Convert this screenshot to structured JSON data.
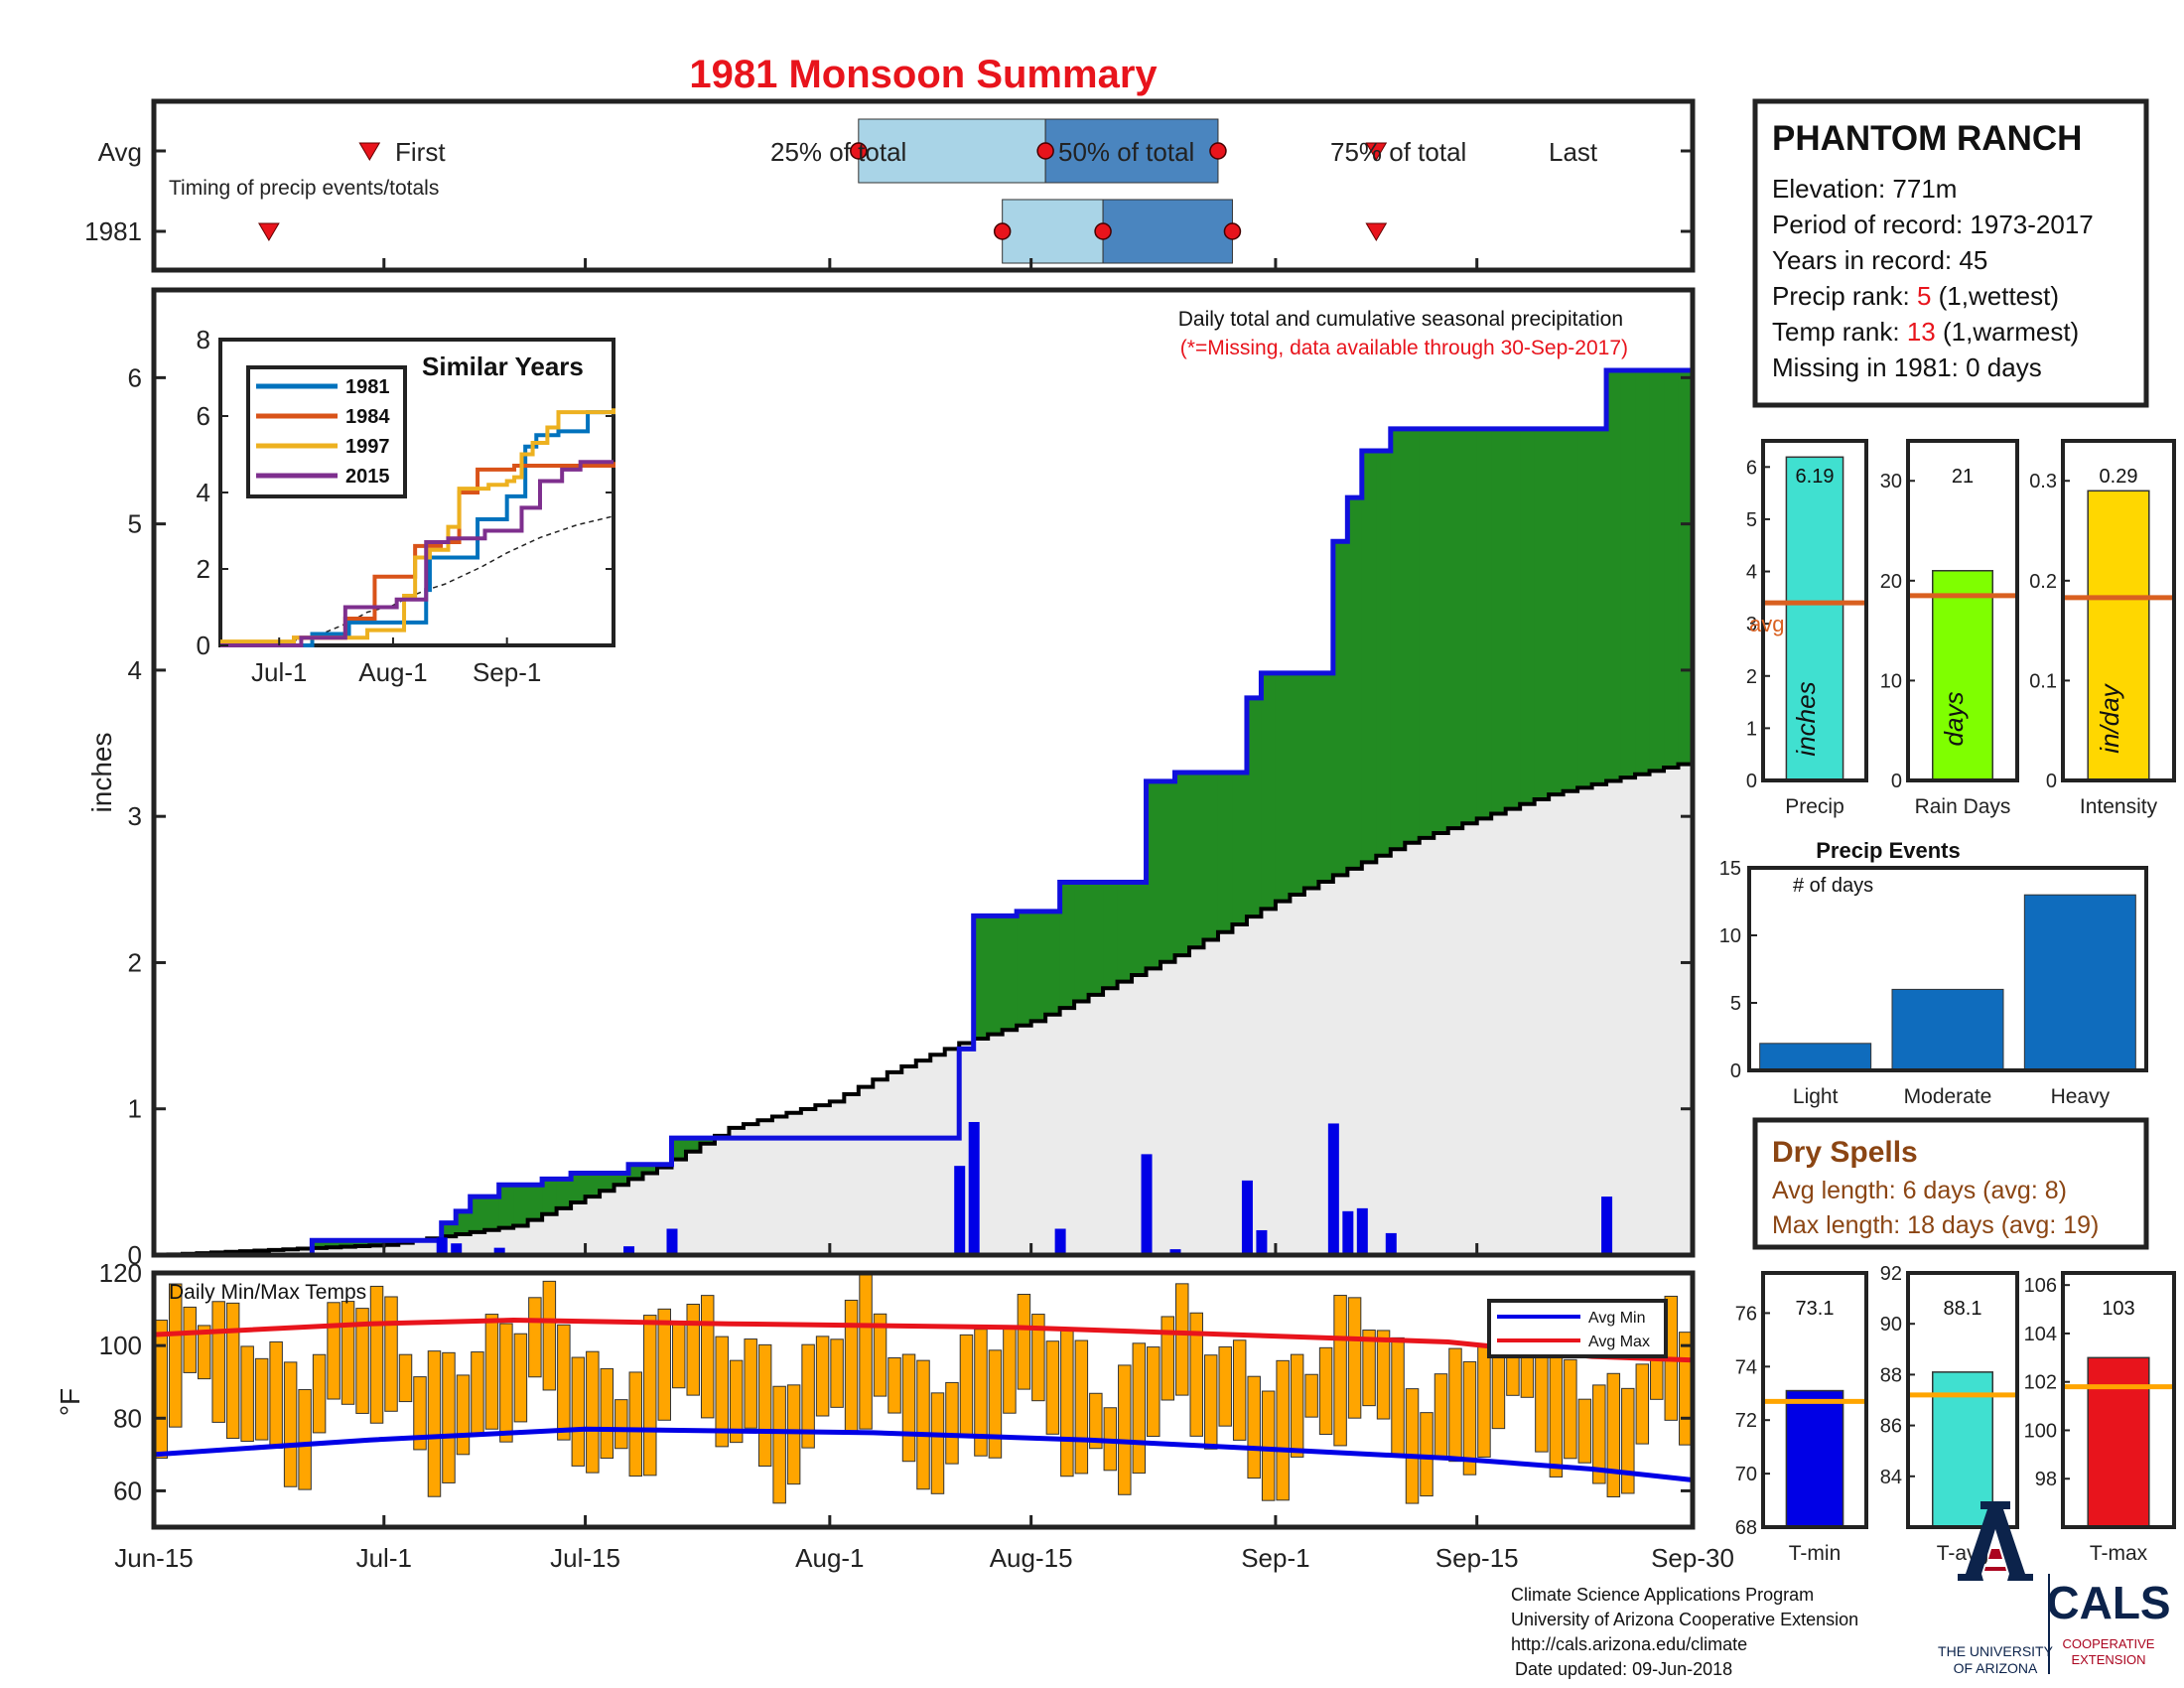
{
  "title": "1981 Monsoon Summary",
  "colors": {
    "title": "#e8141c",
    "red": "#e8141c",
    "light_blue": "#a9d4e7",
    "mid_blue": "#4a85bf",
    "bar_blue": "#0000e6",
    "outline_blue": "#1010dd",
    "green": "#228b22",
    "brown": "#b8860b",
    "gray_fill": "#ebebeb",
    "orange": "#ffa500",
    "turquoise": "#40e0d0",
    "lime": "#7fff00",
    "gold": "#ffd700",
    "event_blue": "#0f6cbd",
    "avg_line": "#d96020",
    "temp_avg_line": "#ffa500",
    "dry_brown": "#8b4513",
    "ua_navy": "#0c234b",
    "ua_red": "#ab0520"
  },
  "timing": {
    "row_avg": "Avg",
    "row_year": "1981",
    "subtitle": "Timing of precip events/totals",
    "first_label": "First",
    "last_label": "Last",
    "q25_label": "25% of total",
    "q50_label": "50% of total",
    "q75_label": "75% of total",
    "avg": {
      "first": 15,
      "q25": 49,
      "q50": 62,
      "q75": 74,
      "last": 85
    },
    "year": {
      "first": 8,
      "q25": 59,
      "q50": 66,
      "q75": 75,
      "last": 85
    }
  },
  "station": {
    "name": "PHANTOM RANCH",
    "elevation": "Elevation: 771m",
    "period": "Period of record: 1973-2017",
    "years": "Years in record: 45",
    "precip_rank_label": "Precip rank: ",
    "precip_rank_value": "5",
    "precip_rank_note": " (1,wettest)",
    "temp_rank_label": "Temp rank: ",
    "temp_rank_value": "13",
    "temp_rank_note": " (1,warmest)",
    "missing": "Missing in 1981: 0 days"
  },
  "precip_chart": {
    "annotation": "Daily total and cumulative seasonal precipitation",
    "annotation_missing": "(*=Missing, data available through 30-Sep-2017)",
    "ylabel": "inches",
    "ylim": [
      0,
      6.6
    ],
    "yticks": [
      "0",
      "1",
      "2",
      "3",
      "4",
      "5",
      "6"
    ],
    "xticks": [
      "Jun-15",
      "Jul-1",
      "Jul-15",
      "Aug-1",
      "Aug-15",
      "Sep-1",
      "Sep-15",
      "Sep-30"
    ]
  },
  "chart_data": [
    {
      "type": "bar",
      "title": "Daily total and cumulative seasonal precipitation",
      "ylabel": "inches",
      "x_start": "Jun-15",
      "x_end": "Sep-30",
      "ylim": [
        0,
        6.6
      ],
      "daily_precip": [
        {
          "date": "Jul-5",
          "value": 0.12
        },
        {
          "date": "Jul-6",
          "value": 0.08
        },
        {
          "date": "Jul-9",
          "value": 0.05
        },
        {
          "date": "Jul-18",
          "value": 0.06
        },
        {
          "date": "Jul-21",
          "value": 0.18
        },
        {
          "date": "Aug-10",
          "value": 0.61
        },
        {
          "date": "Aug-11",
          "value": 0.91
        },
        {
          "date": "Aug-17",
          "value": 0.18
        },
        {
          "date": "Aug-23",
          "value": 0.69
        },
        {
          "date": "Aug-25",
          "value": 0.04
        },
        {
          "date": "Aug-30",
          "value": 0.51
        },
        {
          "date": "Aug-31",
          "value": 0.17
        },
        {
          "date": "Sep-5",
          "value": 0.9
        },
        {
          "date": "Sep-6",
          "value": 0.3
        },
        {
          "date": "Sep-7",
          "value": 0.32
        },
        {
          "date": "Sep-9",
          "value": 0.15
        },
        {
          "date": "Sep-24",
          "value": 0.4
        }
      ],
      "cumulative_1981": [
        {
          "date": "Jun-15",
          "value": 0
        },
        {
          "date": "Jun-26",
          "value": 0.1
        },
        {
          "date": "Jul-5",
          "value": 0.22
        },
        {
          "date": "Jul-6",
          "value": 0.3
        },
        {
          "date": "Jul-7",
          "value": 0.4
        },
        {
          "date": "Jul-9",
          "value": 0.48
        },
        {
          "date": "Jul-12",
          "value": 0.52
        },
        {
          "date": "Jul-14",
          "value": 0.56
        },
        {
          "date": "Jul-18",
          "value": 0.62
        },
        {
          "date": "Jul-21",
          "value": 0.8
        },
        {
          "date": "Aug-10",
          "value": 1.41
        },
        {
          "date": "Aug-11",
          "value": 2.32
        },
        {
          "date": "Aug-14",
          "value": 2.35
        },
        {
          "date": "Aug-17",
          "value": 2.55
        },
        {
          "date": "Aug-23",
          "value": 3.24
        },
        {
          "date": "Aug-25",
          "value": 3.3
        },
        {
          "date": "Aug-30",
          "value": 3.81
        },
        {
          "date": "Aug-31",
          "value": 3.98
        },
        {
          "date": "Sep-5",
          "value": 4.88
        },
        {
          "date": "Sep-6",
          "value": 5.18
        },
        {
          "date": "Sep-7",
          "value": 5.5
        },
        {
          "date": "Sep-9",
          "value": 5.65
        },
        {
          "date": "Sep-24",
          "value": 6.05
        },
        {
          "date": "Sep-30",
          "value": 6.19
        }
      ],
      "cumulative_average": [
        {
          "date": "Jun-15",
          "value": 0
        },
        {
          "date": "Jul-1",
          "value": 0.07
        },
        {
          "date": "Jul-10",
          "value": 0.2
        },
        {
          "date": "Jul-20",
          "value": 0.6
        },
        {
          "date": "Jul-25",
          "value": 0.87
        },
        {
          "date": "Aug-1",
          "value": 1.05
        },
        {
          "date": "Aug-5",
          "value": 1.25
        },
        {
          "date": "Aug-10",
          "value": 1.45
        },
        {
          "date": "Aug-15",
          "value": 1.6
        },
        {
          "date": "Aug-25",
          "value": 2.05
        },
        {
          "date": "Sep-1",
          "value": 2.42
        },
        {
          "date": "Sep-10",
          "value": 2.82
        },
        {
          "date": "Sep-20",
          "value": 3.15
        },
        {
          "date": "Sep-30",
          "value": 3.38
        }
      ]
    },
    {
      "type": "line",
      "title": "Similar Years",
      "xticks": [
        "Jul-1",
        "Aug-1",
        "Sep-1"
      ],
      "yticks": [
        "0",
        "2",
        "4",
        "6",
        "8"
      ],
      "ylim": [
        0,
        8
      ],
      "series": [
        {
          "name": "1981",
          "color": "#0072bd",
          "points": [
            [
              0,
              0
            ],
            [
              25,
              0.3
            ],
            [
              35,
              0.6
            ],
            [
              56,
              1.45
            ],
            [
              57,
              2.3
            ],
            [
              70,
              3.3
            ],
            [
              78,
              3.9
            ],
            [
              83,
              5.2
            ],
            [
              86,
              5.5
            ],
            [
              92,
              5.6
            ],
            [
              100,
              6.1
            ],
            [
              107,
              6.19
            ]
          ]
        },
        {
          "name": "1984",
          "color": "#d95319",
          "points": [
            [
              0,
              0
            ],
            [
              20,
              0.2
            ],
            [
              34,
              0.7
            ],
            [
              42,
              1.8
            ],
            [
              53,
              2.6
            ],
            [
              60,
              2.7
            ],
            [
              65,
              4.0
            ],
            [
              70,
              4.6
            ],
            [
              80,
              4.7
            ],
            [
              93,
              4.7
            ],
            [
              107,
              4.8
            ]
          ]
        },
        {
          "name": "1997",
          "color": "#edb120",
          "points": [
            [
              0,
              0.1
            ],
            [
              20,
              0.2
            ],
            [
              40,
              0.4
            ],
            [
              50,
              1.3
            ],
            [
              53,
              2.3
            ],
            [
              57,
              2.5
            ],
            [
              62,
              3.1
            ],
            [
              65,
              4.1
            ],
            [
              73,
              4.2
            ],
            [
              78,
              4.3
            ],
            [
              80,
              4.4
            ],
            [
              82,
              5.0
            ],
            [
              85,
              5.3
            ],
            [
              89,
              5.7
            ],
            [
              92,
              6.1
            ],
            [
              107,
              6.2
            ]
          ]
        },
        {
          "name": "2015",
          "color": "#7e2f8e",
          "points": [
            [
              0,
              0
            ],
            [
              22,
              0.2
            ],
            [
              34,
              1.0
            ],
            [
              48,
              1.2
            ],
            [
              56,
              2.7
            ],
            [
              62,
              2.8
            ],
            [
              72,
              3.0
            ],
            [
              82,
              3.6
            ],
            [
              87,
              4.3
            ],
            [
              93,
              4.6
            ],
            [
              98,
              4.8
            ],
            [
              107,
              4.8
            ]
          ]
        }
      ]
    },
    {
      "type": "bar",
      "title": "Daily Min/Max Temps",
      "ylabel": "°F",
      "ylim": [
        50,
        120
      ],
      "yticks": [
        "60",
        "80",
        "100",
        "120"
      ],
      "legend": [
        "Avg Min",
        "Avg Max"
      ],
      "note": "Daily bars span daily min to max temperature, Jun-15 to Sep-30",
      "avg_max": [
        [
          0,
          103
        ],
        [
          15,
          106
        ],
        [
          25,
          107
        ],
        [
          40,
          106
        ],
        [
          60,
          105
        ],
        [
          75,
          103
        ],
        [
          90,
          101
        ],
        [
          100,
          97
        ],
        [
          107,
          96
        ]
      ],
      "avg_min": [
        [
          0,
          70
        ],
        [
          15,
          74
        ],
        [
          30,
          77
        ],
        [
          50,
          76
        ],
        [
          65,
          74
        ],
        [
          80,
          71
        ],
        [
          90,
          69
        ],
        [
          100,
          66
        ],
        [
          107,
          63
        ]
      ]
    },
    {
      "type": "bar",
      "panels": [
        {
          "category": "Precip",
          "value": 6.19,
          "label": "6.19",
          "avg": 3.4,
          "unit": "inches",
          "ylim": [
            0,
            6.5
          ],
          "yticks": [
            "0",
            "1",
            "2",
            "3",
            "4",
            "5",
            "6"
          ]
        },
        {
          "category": "Rain Days",
          "value": 21,
          "label": "21",
          "avg": 18.5,
          "unit": "days",
          "ylim": [
            0,
            34
          ],
          "yticks": [
            "0",
            "10",
            "20",
            "30"
          ]
        },
        {
          "category": "Intensity",
          "value": 0.29,
          "label": "0.29",
          "avg": 0.183,
          "unit": "in/day",
          "ylim": [
            0,
            0.34
          ],
          "yticks": [
            "0",
            "0.1",
            "0.2",
            "0.3"
          ]
        }
      ],
      "avg_label": "avg"
    },
    {
      "type": "bar",
      "title": "Precip Events",
      "ylabel": "# of days",
      "categories": [
        "Light",
        "Moderate",
        "Heavy"
      ],
      "values": [
        2,
        6,
        13
      ],
      "ylim": [
        0,
        15
      ],
      "yticks": [
        "0",
        "5",
        "10",
        "15"
      ]
    },
    {
      "type": "bar",
      "panels": [
        {
          "category": "T-min",
          "value": 73.1,
          "label": "73.1",
          "avg": 72.7,
          "ylim": [
            68,
            77.5
          ],
          "yticks": [
            "68",
            "70",
            "72",
            "74",
            "76"
          ]
        },
        {
          "category": "T-avg",
          "value": 88.1,
          "label": "88.1",
          "avg": 87.2,
          "ylim": [
            82,
            92
          ],
          "yticks": [
            "84",
            "86",
            "88",
            "90",
            "92"
          ]
        },
        {
          "category": "T-max",
          "value": 103,
          "label": "103",
          "avg": 101.8,
          "ylim": [
            96,
            106.5
          ],
          "yticks": [
            "98",
            "100",
            "102",
            "104",
            "106"
          ]
        }
      ]
    }
  ],
  "dry_spells": {
    "title": "Dry Spells",
    "avg_length": "Avg length: 6 days (avg: 8)",
    "max_length": "Max length: 18 days (avg: 19)"
  },
  "footer": {
    "line1": "Climate Science Applications Program",
    "line2": "University of Arizona Cooperative Extension",
    "line3": "http://cals.arizona.edu/climate",
    "line4": "Date updated: 09-Jun-2018",
    "ua_line1": "THE UNIVERSITY",
    "ua_line2": "OF ARIZONA",
    "cals": "CALS",
    "cals_sub1": "COOPERATIVE",
    "cals_sub2": "EXTENSION"
  }
}
